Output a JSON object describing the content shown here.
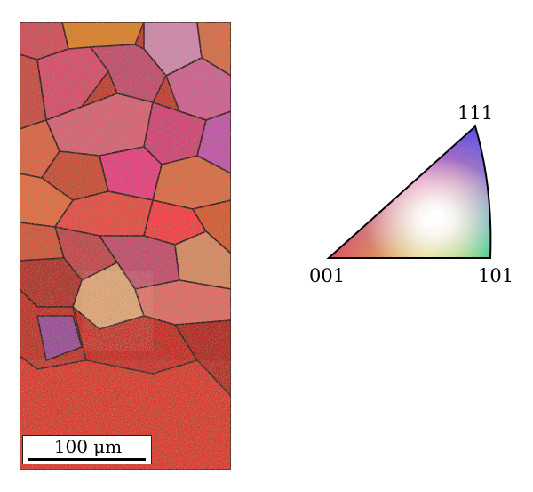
{
  "figure": {
    "scale_bar": {
      "label": "100 μm"
    },
    "ipf_legend": {
      "corners": {
        "top": "111",
        "left": "001",
        "right": "101"
      },
      "colors": {
        "001": "#ff1f3a",
        "101": "#20e020",
        "111": "#1a32ff"
      }
    },
    "map_palette": [
      "#c8423a",
      "#d9566a",
      "#e0568a",
      "#f0307a",
      "#e4622e",
      "#ff4a3c",
      "#ea3a50",
      "#cf2a2a",
      "#b82828",
      "#c86a8e",
      "#9a3aa0",
      "#e8a06a"
    ]
  }
}
